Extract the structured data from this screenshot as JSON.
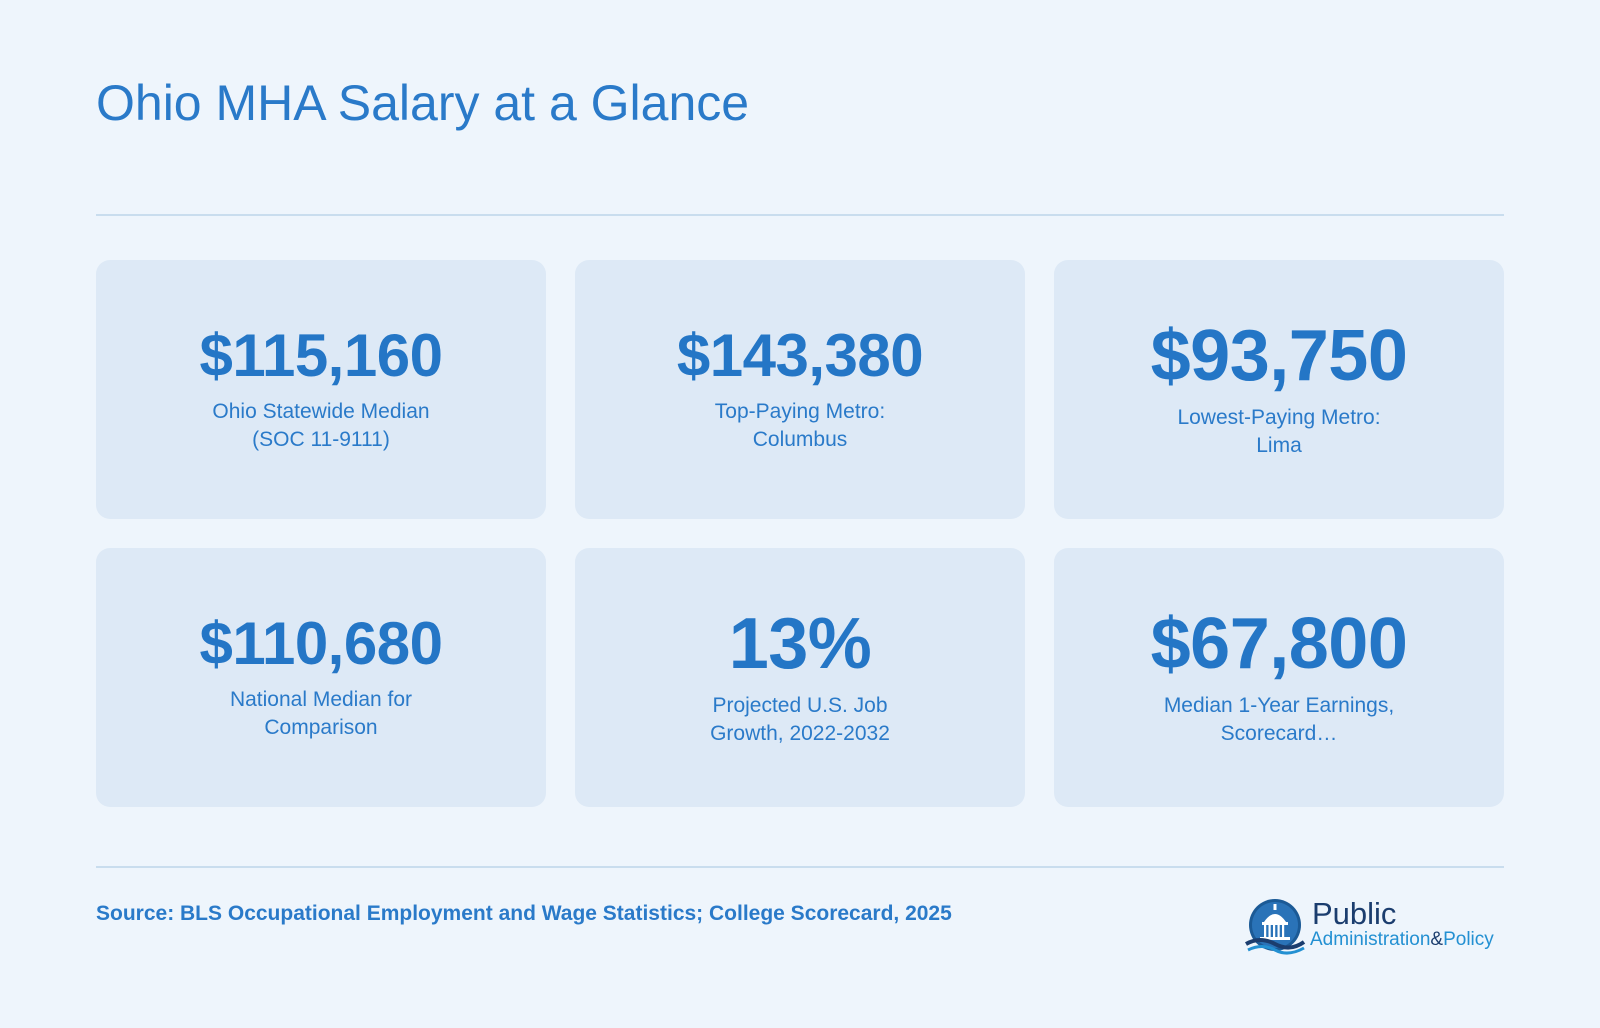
{
  "page": {
    "title": "Ohio MHA Salary at a Glance"
  },
  "stats": [
    {
      "value": "$115,160",
      "label": "Ohio Statewide Median (SOC 11-9111)"
    },
    {
      "value": "$143,380",
      "label": "Top-Paying Metro: Columbus"
    },
    {
      "value": "$93,750",
      "label": "Lowest-Paying Metro: Lima"
    },
    {
      "value": "$110,680",
      "label": "National Median for Comparison"
    },
    {
      "value": "13%",
      "label": "Projected U.S. Job Growth, 2022-2032"
    },
    {
      "value": "$67,800",
      "label": "Median 1-Year Earnings, Scorecard…"
    }
  ],
  "footer": {
    "source": "Source: BLS Occupational Employment and Wage Statistics; College Scorecard, 2025"
  },
  "logo": {
    "line1": "Public",
    "word_a": "Administration",
    "amp": "&",
    "word_b": "Policy",
    "icon": "capitol-dome-icon"
  },
  "colors": {
    "background": "#eef5fc",
    "card": "#dde9f6",
    "accent": "#2476c6",
    "logo_navy": "#1b3d6e",
    "logo_blue": "#2390d2"
  }
}
